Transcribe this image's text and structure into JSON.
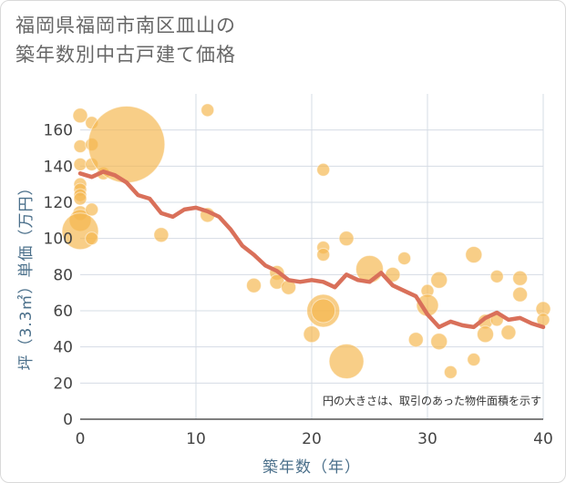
{
  "header": {
    "title_line1": "福岡県福岡市南区皿山の",
    "title_line2": "築年数別中古戸建て価格"
  },
  "chart_data": {
    "type": "scatter",
    "xlabel": "築年数（年）",
    "ylabel": "坪（3.3㎡）単価（万円）",
    "xlim": [
      0,
      40
    ],
    "ylim": [
      0,
      180
    ],
    "xticks": [
      0,
      10,
      20,
      30,
      40
    ],
    "yticks": [
      0,
      20,
      40,
      60,
      80,
      100,
      120,
      140,
      160
    ],
    "grid": true,
    "note": "円の大きさは、取引のあった物件面積を示す",
    "colors": {
      "bubble": "#f5b74e",
      "line": "#d9705a",
      "grid": "#d6dce4"
    },
    "bubbles": [
      {
        "x": 0,
        "y": 168,
        "size": 8
      },
      {
        "x": 0,
        "y": 151,
        "size": 7
      },
      {
        "x": 0,
        "y": 141,
        "size": 7
      },
      {
        "x": 0,
        "y": 130,
        "size": 7
      },
      {
        "x": 0,
        "y": 127,
        "size": 7
      },
      {
        "x": 0,
        "y": 124,
        "size": 7
      },
      {
        "x": 0,
        "y": 122,
        "size": 7
      },
      {
        "x": 0,
        "y": 114,
        "size": 8
      },
      {
        "x": 0,
        "y": 110,
        "size": 12
      },
      {
        "x": 0,
        "y": 104,
        "size": 20
      },
      {
        "x": 1,
        "y": 164,
        "size": 7
      },
      {
        "x": 1,
        "y": 152,
        "size": 7
      },
      {
        "x": 1,
        "y": 141,
        "size": 7
      },
      {
        "x": 1,
        "y": 116,
        "size": 7
      },
      {
        "x": 1,
        "y": 100,
        "size": 7
      },
      {
        "x": 2,
        "y": 136,
        "size": 7
      },
      {
        "x": 4,
        "y": 152,
        "size": 42
      },
      {
        "x": 7,
        "y": 102,
        "size": 8
      },
      {
        "x": 11,
        "y": 171,
        "size": 7
      },
      {
        "x": 11,
        "y": 113,
        "size": 8
      },
      {
        "x": 15,
        "y": 74,
        "size": 8
      },
      {
        "x": 17,
        "y": 81,
        "size": 8
      },
      {
        "x": 17,
        "y": 76,
        "size": 8
      },
      {
        "x": 18,
        "y": 73,
        "size": 8
      },
      {
        "x": 20,
        "y": 47,
        "size": 9
      },
      {
        "x": 21,
        "y": 138,
        "size": 7
      },
      {
        "x": 21,
        "y": 95,
        "size": 7
      },
      {
        "x": 21,
        "y": 91,
        "size": 7
      },
      {
        "x": 21,
        "y": 60,
        "size": 18
      },
      {
        "x": 21,
        "y": 60,
        "size": 13
      },
      {
        "x": 23,
        "y": 100,
        "size": 8
      },
      {
        "x": 23,
        "y": 32,
        "size": 19
      },
      {
        "x": 25,
        "y": 83,
        "size": 15
      },
      {
        "x": 27,
        "y": 80,
        "size": 8
      },
      {
        "x": 28,
        "y": 89,
        "size": 7
      },
      {
        "x": 29,
        "y": 44,
        "size": 8
      },
      {
        "x": 30,
        "y": 71,
        "size": 7
      },
      {
        "x": 30,
        "y": 63,
        "size": 12
      },
      {
        "x": 31,
        "y": 77,
        "size": 9
      },
      {
        "x": 31,
        "y": 43,
        "size": 9
      },
      {
        "x": 32,
        "y": 26,
        "size": 7
      },
      {
        "x": 34,
        "y": 91,
        "size": 9
      },
      {
        "x": 34,
        "y": 33,
        "size": 7
      },
      {
        "x": 35,
        "y": 54,
        "size": 8
      },
      {
        "x": 35,
        "y": 47,
        "size": 9
      },
      {
        "x": 36,
        "y": 79,
        "size": 7
      },
      {
        "x": 36,
        "y": 55,
        "size": 7
      },
      {
        "x": 37,
        "y": 48,
        "size": 8
      },
      {
        "x": 38,
        "y": 78,
        "size": 8
      },
      {
        "x": 38,
        "y": 69,
        "size": 8
      },
      {
        "x": 40,
        "y": 61,
        "size": 8
      },
      {
        "x": 40,
        "y": 55,
        "size": 7
      }
    ],
    "trend": {
      "x": [
        0,
        1,
        2,
        3,
        4,
        5,
        6,
        7,
        8,
        9,
        10,
        11,
        12,
        13,
        14,
        15,
        16,
        17,
        18,
        19,
        20,
        21,
        22,
        23,
        24,
        25,
        26,
        27,
        28,
        29,
        30,
        31,
        32,
        33,
        34,
        35,
        36,
        37,
        38,
        39,
        40
      ],
      "y": [
        136,
        134,
        137,
        135,
        131,
        124,
        122,
        114,
        112,
        116,
        117,
        115,
        112,
        105,
        96,
        91,
        85,
        82,
        77,
        76,
        77,
        76,
        73,
        80,
        77,
        76,
        81,
        74,
        71,
        68,
        58,
        51,
        54,
        52,
        51,
        56,
        59,
        55,
        56,
        53,
        51
      ]
    }
  }
}
